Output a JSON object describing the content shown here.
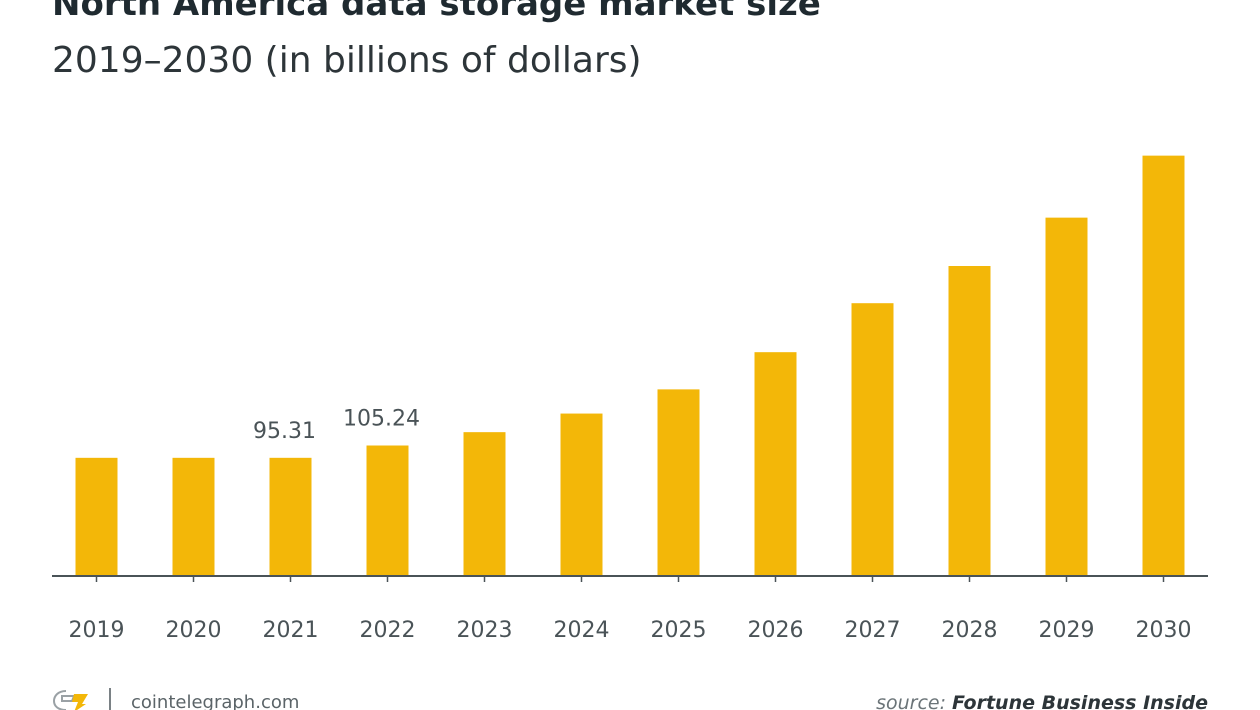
{
  "header": {
    "title": "North America data storage market size",
    "subtitle": "2019–2030 (in billions of dollars)"
  },
  "chart_data": {
    "type": "bar",
    "categories": [
      "2019",
      "2020",
      "2021",
      "2022",
      "2023",
      "2024",
      "2025",
      "2026",
      "2027",
      "2028",
      "2029",
      "2030"
    ],
    "values": [
      95.3,
      95.3,
      95.31,
      105.24,
      116,
      131,
      150.5,
      180.5,
      220,
      250,
      289,
      339
    ],
    "data_labels": {
      "2021": "95.31",
      "2022": "105.24"
    },
    "ylim": [
      0,
      350
    ],
    "grid": false,
    "bar_color": "#F3B708",
    "axis_color": "#4a5357"
  },
  "footer": {
    "logo_icon": "cointelegraph-logo",
    "site": "cointelegraph.com",
    "source_prefix": "source: ",
    "source_name": "Fortune Business Inside"
  },
  "colors": {
    "accent": "#F3B708",
    "text": "#1f2a30",
    "muted": "#6b7478"
  }
}
